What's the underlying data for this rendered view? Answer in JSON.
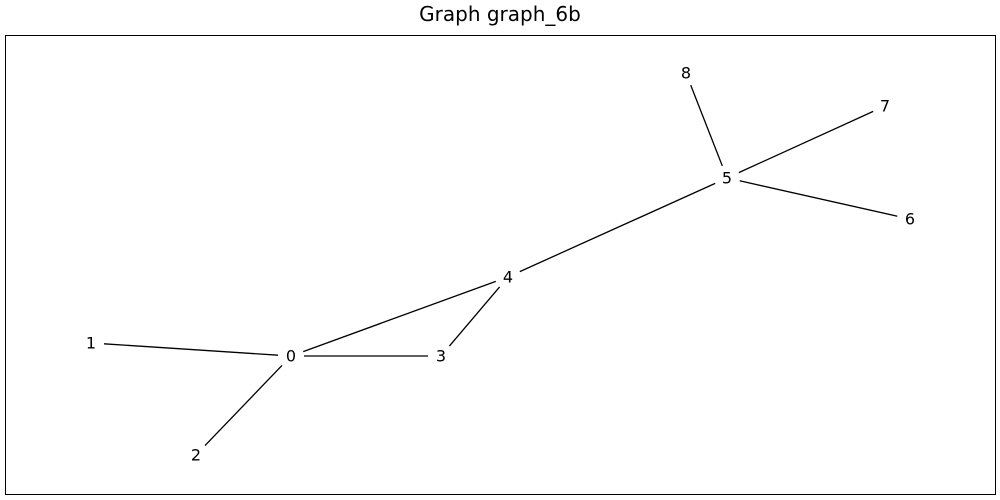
{
  "title": "Graph graph_6b",
  "graph": {
    "nodes": [
      {
        "id": "0",
        "label": "0"
      },
      {
        "id": "1",
        "label": "1"
      },
      {
        "id": "2",
        "label": "2"
      },
      {
        "id": "3",
        "label": "3"
      },
      {
        "id": "4",
        "label": "4"
      },
      {
        "id": "5",
        "label": "5"
      },
      {
        "id": "6",
        "label": "6"
      },
      {
        "id": "7",
        "label": "7"
      },
      {
        "id": "8",
        "label": "8"
      }
    ],
    "edges": [
      {
        "source": "0",
        "target": "1"
      },
      {
        "source": "0",
        "target": "2"
      },
      {
        "source": "0",
        "target": "3"
      },
      {
        "source": "0",
        "target": "4"
      },
      {
        "source": "3",
        "target": "4"
      },
      {
        "source": "4",
        "target": "5"
      },
      {
        "source": "5",
        "target": "6"
      },
      {
        "source": "5",
        "target": "7"
      },
      {
        "source": "5",
        "target": "8"
      }
    ],
    "edge_color": "#000000",
    "label_color": "#000000"
  }
}
